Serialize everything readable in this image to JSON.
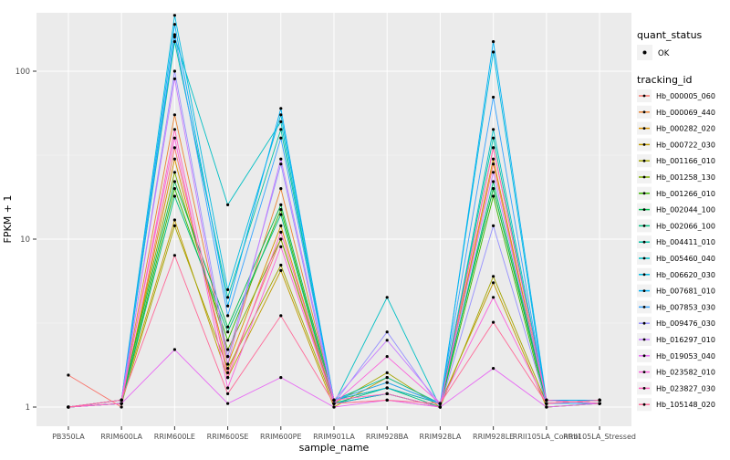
{
  "chart": {
    "y_axis_title": "FPKM + 1",
    "x_axis_title": "sample_name",
    "legend": {
      "quant_status_title": "quant_status",
      "quant_status_items": [
        "OK"
      ],
      "tracking_id_title": "tracking_id"
    }
  },
  "chart_data": {
    "type": "line",
    "title": "",
    "xlabel": "sample_name",
    "ylabel": "FPKM + 1",
    "y_scale": "log10",
    "y_ticks": [
      1,
      10,
      100
    ],
    "y_tick_labels": [
      "1",
      "10",
      "100"
    ],
    "y_minor_ticks": [
      3.1623,
      31.623
    ],
    "ylim": [
      0.93,
      240
    ],
    "grid": true,
    "legend_position": "right",
    "panel_bg": "#EBEBEB",
    "grid_major_color": "#FFFFFF",
    "grid_minor_color": "#F5F5F5",
    "tick_label_color": "#4D4D4D",
    "point_color": "#000000",
    "legend_key_bg": "#F2F2F2",
    "categories": [
      "PB350LA",
      "RRIM600LA",
      "RRIM600LE",
      "RRIM600SE",
      "RRIM600PE",
      "RRIM901LA",
      "RRIM928BA",
      "RRIM928LA",
      "RRIM928LE",
      "RRII105LA_Control",
      "RRII105LA_Stressed"
    ],
    "series": [
      {
        "name": "Hb_000005_060",
        "color": "#F8766D",
        "values": [
          1.55,
          1.0,
          35,
          1.6,
          10,
          1.05,
          1.1,
          1.0,
          28,
          1.05,
          1.1
        ]
      },
      {
        "name": "Hb_000069_440",
        "color": "#EA8331",
        "values": [
          1.0,
          1.1,
          55,
          2.0,
          20,
          1.1,
          1.3,
          1.05,
          35,
          1.1,
          1.05
        ]
      },
      {
        "name": "Hb_000282_020",
        "color": "#D89000",
        "values": [
          1.0,
          1.05,
          30,
          1.8,
          12,
          1.05,
          1.2,
          1.0,
          30,
          1.05,
          1.1
        ]
      },
      {
        "name": "Hb_000722_030",
        "color": "#C09B00",
        "values": [
          1.0,
          1.1,
          13,
          1.5,
          6.5,
          1.0,
          1.5,
          1.05,
          5.5,
          1.0,
          1.05
        ]
      },
      {
        "name": "Hb_001166_010",
        "color": "#A3A500",
        "values": [
          1.0,
          1.05,
          12,
          1.7,
          7,
          1.05,
          1.6,
          1.0,
          6,
          1.05,
          1.1
        ]
      },
      {
        "name": "Hb_001258_130",
        "color": "#7CAE00",
        "values": [
          1.0,
          1.1,
          25,
          2.2,
          10,
          1.1,
          1.3,
          1.05,
          20,
          1.1,
          1.05
        ]
      },
      {
        "name": "Hb_001266_010",
        "color": "#39B600",
        "values": [
          1.0,
          1.05,
          20,
          2.5,
          15,
          1.05,
          1.2,
          1.0,
          18,
          1.0,
          1.05
        ]
      },
      {
        "name": "Hb_002044_100",
        "color": "#00BB4E",
        "values": [
          1.0,
          1.1,
          22,
          3.0,
          16,
          1.1,
          1.4,
          1.05,
          20,
          1.05,
          1.1
        ]
      },
      {
        "name": "Hb_002066_100",
        "color": "#00BF7D",
        "values": [
          1.0,
          1.05,
          18,
          2.8,
          14,
          1.05,
          1.3,
          1.0,
          22,
          1.1,
          1.05
        ]
      },
      {
        "name": "Hb_004411_010",
        "color": "#00C1A3",
        "values": [
          1.0,
          1.1,
          150,
          4.5,
          45,
          1.1,
          1.5,
          1.05,
          40,
          1.05,
          1.1
        ]
      },
      {
        "name": "Hb_005460_040",
        "color": "#00BFC4",
        "values": [
          1.0,
          1.05,
          160,
          16,
          50,
          1.05,
          4.5,
          1.0,
          45,
          1.1,
          1.1
        ]
      },
      {
        "name": "Hb_006620_030",
        "color": "#00BAE0",
        "values": [
          1.0,
          1.1,
          215,
          5.0,
          55,
          1.1,
          1.3,
          1.05,
          130,
          1.05,
          1.05
        ]
      },
      {
        "name": "Hb_007681_010",
        "color": "#00B0F6",
        "values": [
          1.0,
          1.05,
          190,
          4.0,
          60,
          1.05,
          1.2,
          1.0,
          150,
          1.1,
          1.1
        ]
      },
      {
        "name": "Hb_007853_030",
        "color": "#35A2FF",
        "values": [
          1.0,
          1.1,
          165,
          3.5,
          40,
          1.1,
          1.4,
          1.05,
          70,
          1.05,
          1.05
        ]
      },
      {
        "name": "Hb_009476_030",
        "color": "#9590FF",
        "values": [
          1.0,
          1.05,
          100,
          2.0,
          28,
          1.05,
          2.8,
          1.0,
          12,
          1.05,
          1.1
        ]
      },
      {
        "name": "Hb_016297_010",
        "color": "#C77CFF",
        "values": [
          1.0,
          1.1,
          90,
          1.8,
          30,
          1.1,
          2.5,
          1.05,
          25,
          1.1,
          1.05
        ]
      },
      {
        "name": "Hb_019053_040",
        "color": "#E76BF3",
        "values": [
          1.0,
          1.05,
          2.2,
          1.05,
          1.5,
          1.0,
          1.1,
          1.0,
          1.7,
          1.0,
          1.05
        ]
      },
      {
        "name": "Hb_023582_010",
        "color": "#FA62DB",
        "values": [
          1.0,
          1.1,
          40,
          1.3,
          9,
          1.05,
          2.0,
          1.05,
          4.5,
          1.05,
          1.1
        ]
      },
      {
        "name": "Hb_023827_030",
        "color": "#FF62BC",
        "values": [
          1.0,
          1.05,
          45,
          1.5,
          11,
          1.1,
          1.2,
          1.0,
          35,
          1.1,
          1.05
        ]
      },
      {
        "name": "Hb_105148_020",
        "color": "#FF6A98",
        "values": [
          1.0,
          1.1,
          8,
          1.2,
          3.5,
          1.05,
          1.1,
          1.05,
          3.2,
          1.05,
          1.1
        ]
      }
    ]
  }
}
